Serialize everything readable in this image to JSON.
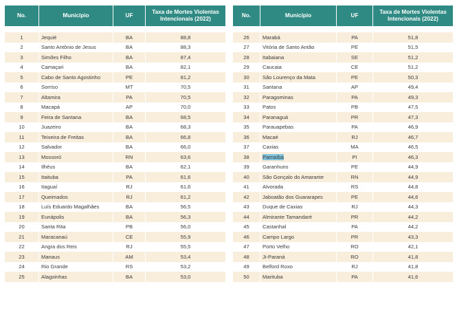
{
  "headers": {
    "no": "No.",
    "municipio": "Município",
    "uf": "UF",
    "taxa_line1": "Taxa de Mortes Violentas",
    "taxa_line2": "Intencionais (2022)"
  },
  "left_rows": [
    {
      "no": "1",
      "municipio": "Jequié",
      "uf": "BA",
      "taxa": "88,8"
    },
    {
      "no": "2",
      "municipio": "Santo Antônio de Jesus",
      "uf": "BA",
      "taxa": "88,3"
    },
    {
      "no": "3",
      "municipio": "Simões Filho",
      "uf": "BA",
      "taxa": "87,4"
    },
    {
      "no": "4",
      "municipio": "Camaçari",
      "uf": "BA",
      "taxa": "82,1"
    },
    {
      "no": "5",
      "municipio": "Cabo de Santo Agostinho",
      "uf": "PE",
      "taxa": "81,2"
    },
    {
      "no": "6",
      "municipio": "Sorriso",
      "uf": "MT",
      "taxa": "70,5"
    },
    {
      "no": "7",
      "municipio": "Altamira",
      "uf": "PA",
      "taxa": "70,5"
    },
    {
      "no": "8",
      "municipio": "Macapá",
      "uf": "AP",
      "taxa": "70,0"
    },
    {
      "no": "9",
      "municipio": "Feira de Santana",
      "uf": "BA",
      "taxa": "68,5"
    },
    {
      "no": "10",
      "municipio": "Juazeiro",
      "uf": "BA",
      "taxa": "68,3"
    },
    {
      "no": "11",
      "municipio": "Teixeira de Freitas",
      "uf": "BA",
      "taxa": "66,8"
    },
    {
      "no": "12",
      "municipio": "Salvador",
      "uf": "BA",
      "taxa": "66,0"
    },
    {
      "no": "13",
      "municipio": "Mossoró",
      "uf": "RN",
      "taxa": "63,6"
    },
    {
      "no": "14",
      "municipio": "Ilhéus",
      "uf": "BA",
      "taxa": "62,1"
    },
    {
      "no": "15",
      "municipio": "Itaituba",
      "uf": "PA",
      "taxa": "61,6"
    },
    {
      "no": "16",
      "municipio": "Itaguaí",
      "uf": "RJ",
      "taxa": "61,6"
    },
    {
      "no": "17",
      "municipio": "Queimados",
      "uf": "RJ",
      "taxa": "61,2"
    },
    {
      "no": "18",
      "municipio": "Luís Eduardo Magalhães",
      "uf": "BA",
      "taxa": "56,5"
    },
    {
      "no": "19",
      "municipio": "Eunápolis",
      "uf": "BA",
      "taxa": "56,3"
    },
    {
      "no": "20",
      "municipio": "Santa Rita",
      "uf": "PB",
      "taxa": "56,0"
    },
    {
      "no": "21",
      "municipio": "Maracanaú",
      "uf": "CE",
      "taxa": "55,9"
    },
    {
      "no": "22",
      "municipio": "Angra dos Reis",
      "uf": "RJ",
      "taxa": "55,5"
    },
    {
      "no": "23",
      "municipio": "Manaus",
      "uf": "AM",
      "taxa": "53,4"
    },
    {
      "no": "24",
      "municipio": "Rio Grande",
      "uf": "RS",
      "taxa": "53,2"
    },
    {
      "no": "25",
      "municipio": "Alagoinhas",
      "uf": "BA",
      "taxa": "53,0"
    }
  ],
  "right_rows": [
    {
      "no": "26",
      "municipio": "Marabá",
      "uf": "PA",
      "taxa": "51,8"
    },
    {
      "no": "27",
      "municipio": "Vitória de Santo Antão",
      "uf": "PE",
      "taxa": "51,5"
    },
    {
      "no": "28",
      "municipio": "Itabaiana",
      "uf": "SE",
      "taxa": "51,2"
    },
    {
      "no": "29",
      "municipio": "Caucaia",
      "uf": "CE",
      "taxa": "51,2"
    },
    {
      "no": "30",
      "municipio": "São Lourenço da Mata",
      "uf": "PE",
      "taxa": "50,3"
    },
    {
      "no": "31",
      "municipio": "Santana",
      "uf": "AP",
      "taxa": "49,4"
    },
    {
      "no": "32",
      "municipio": "Paragominas",
      "uf": "PA",
      "taxa": "49,3"
    },
    {
      "no": "33",
      "municipio": "Patos",
      "uf": "PB",
      "taxa": "47,5"
    },
    {
      "no": "34",
      "municipio": "Paranaguá",
      "uf": "PR",
      "taxa": "47,3"
    },
    {
      "no": "35",
      "municipio": "Parauapebas",
      "uf": "PA",
      "taxa": "46,9"
    },
    {
      "no": "36",
      "municipio": "Macaé",
      "uf": "RJ",
      "taxa": "46,7"
    },
    {
      "no": "37",
      "municipio": "Caxias",
      "uf": "MA",
      "taxa": "46,5"
    },
    {
      "no": "38",
      "municipio": "Parnaíba",
      "uf": "PI",
      "taxa": "46,3",
      "highlight": true
    },
    {
      "no": "39",
      "municipio": "Garanhuns",
      "uf": "PE",
      "taxa": "44,9"
    },
    {
      "no": "40",
      "municipio": "São Gonçalo do Amarante",
      "uf": "RN",
      "taxa": "44,9"
    },
    {
      "no": "41",
      "municipio": "Alvorada",
      "uf": "RS",
      "taxa": "44,8"
    },
    {
      "no": "42",
      "municipio": "Jaboatão dos Guararapes",
      "uf": "PE",
      "taxa": "44,6"
    },
    {
      "no": "43",
      "municipio": "Duque de Caxias",
      "uf": "RJ",
      "taxa": "44,3"
    },
    {
      "no": "44",
      "municipio": "Almirante Tamandaré",
      "uf": "PR",
      "taxa": "44,2"
    },
    {
      "no": "45",
      "municipio": "Castanhal",
      "uf": "PA",
      "taxa": "44,2"
    },
    {
      "no": "46",
      "municipio": "Campo Largo",
      "uf": "PR",
      "taxa": "43,3"
    },
    {
      "no": "47",
      "municipio": "Porto Velho",
      "uf": "RO",
      "taxa": "42,1"
    },
    {
      "no": "48",
      "municipio": "Ji-Paraná",
      "uf": "RO",
      "taxa": "41,8"
    },
    {
      "no": "49",
      "municipio": "Belford Roxo",
      "uf": "RJ",
      "taxa": "41,8"
    },
    {
      "no": "50",
      "municipio": "Marituba",
      "uf": "PA",
      "taxa": "41,6"
    }
  ],
  "colors": {
    "header_bg": "#2f8a83",
    "row_alt": "#f8eedb",
    "highlight": "#7fc3dc"
  }
}
